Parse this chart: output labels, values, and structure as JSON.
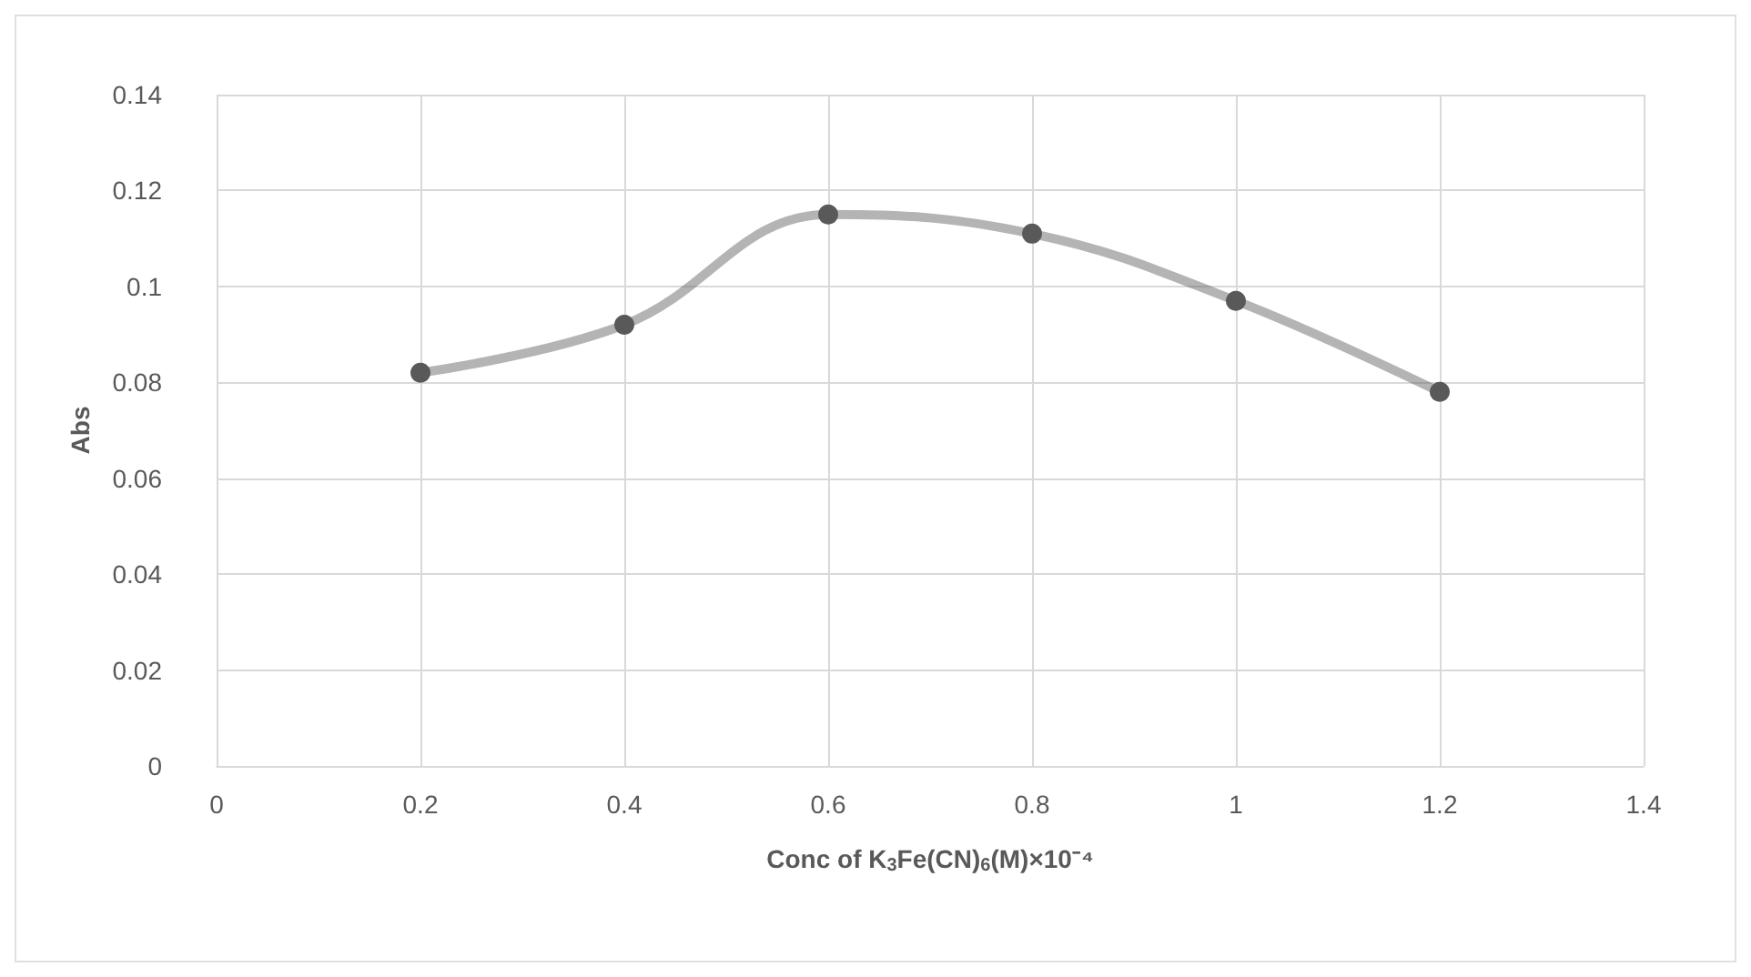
{
  "chart_data": {
    "type": "line",
    "xlabel": "Conc of K$_{3}$Fe(CN)$_{6}$(M)×10⁻⁴",
    "ylabel": "Abs",
    "x": [
      0.2,
      0.4,
      0.6,
      0.8,
      1.0,
      1.2
    ],
    "series": [
      {
        "color": "#595959",
        "values": [
          0.082,
          0.092,
          0.115,
          0.111,
          0.097,
          0.078
        ]
      }
    ],
    "xlim": [
      0,
      1.4
    ],
    "xticks": [
      0,
      0.2,
      0.4,
      0.6,
      0.8,
      1,
      1.2,
      1.4
    ],
    "ylim": [
      0,
      0.14
    ],
    "yticks": [
      0,
      0.02,
      0.04,
      0.06,
      0.08,
      0.1,
      0.12,
      0.14
    ],
    "grid": true,
    "marker": "circle",
    "line_style": "solid"
  }
}
